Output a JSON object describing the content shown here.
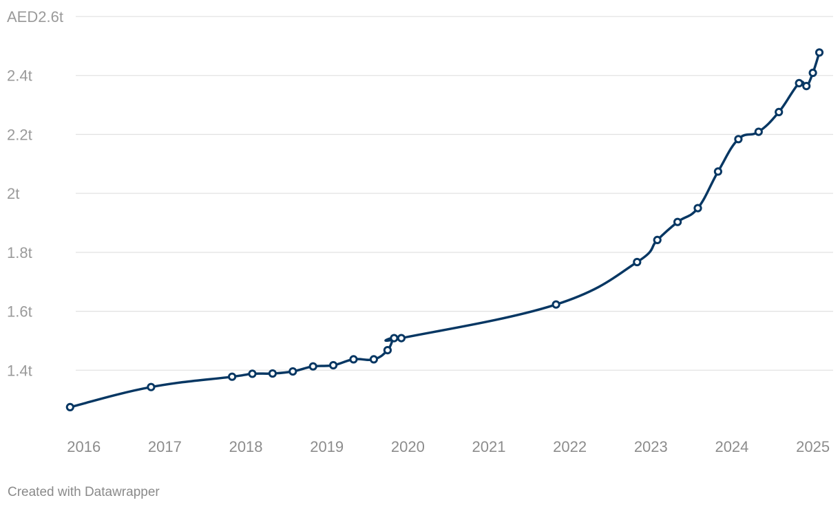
{
  "chart_data": {
    "type": "line",
    "title": "",
    "xlabel": "",
    "ylabel": "",
    "x_domain": [
      2015.9,
      2025.25
    ],
    "ylim": [
      1.2,
      2.6
    ],
    "y_ticks": [
      {
        "value": 2.6,
        "label": "AED2.6t"
      },
      {
        "value": 2.4,
        "label": "2.4t"
      },
      {
        "value": 2.2,
        "label": "2.2t"
      },
      {
        "value": 2.0,
        "label": "2t"
      },
      {
        "value": 1.8,
        "label": "1.8t"
      },
      {
        "value": 1.6,
        "label": "1.6t"
      },
      {
        "value": 1.4,
        "label": "1.4t"
      }
    ],
    "x_ticks": [
      {
        "value": 2016.0,
        "label": "2016"
      },
      {
        "value": 2017.0,
        "label": "2017"
      },
      {
        "value": 2018.0,
        "label": "2018"
      },
      {
        "value": 2019.0,
        "label": "2019"
      },
      {
        "value": 2020.0,
        "label": "2020"
      },
      {
        "value": 2021.0,
        "label": "2021"
      },
      {
        "value": 2022.0,
        "label": "2022"
      },
      {
        "value": 2023.0,
        "label": "2023"
      },
      {
        "value": 2024.0,
        "label": "2024"
      },
      {
        "value": 2025.0,
        "label": "2025"
      }
    ],
    "series": [
      {
        "name": "Value (AED trillion)",
        "color": "#073763",
        "points": [
          {
            "x": 2015.83,
            "y": 1.275
          },
          {
            "x": 2016.83,
            "y": 1.343
          },
          {
            "x": 2017.83,
            "y": 1.378
          },
          {
            "x": 2018.08,
            "y": 1.388
          },
          {
            "x": 2018.33,
            "y": 1.389
          },
          {
            "x": 2018.58,
            "y": 1.396
          },
          {
            "x": 2018.83,
            "y": 1.413
          },
          {
            "x": 2019.08,
            "y": 1.417
          },
          {
            "x": 2019.33,
            "y": 1.437
          },
          {
            "x": 2019.58,
            "y": 1.437
          },
          {
            "x": 2019.75,
            "y": 1.468
          },
          {
            "x": 2019.83,
            "y": 1.509
          },
          {
            "x": 2019.92,
            "y": 1.509
          },
          {
            "x": 2021.83,
            "y": 1.623
          },
          {
            "x": 2022.83,
            "y": 1.767
          },
          {
            "x": 2023.08,
            "y": 1.842
          },
          {
            "x": 2023.33,
            "y": 1.903
          },
          {
            "x": 2023.58,
            "y": 1.95
          },
          {
            "x": 2023.83,
            "y": 2.074
          },
          {
            "x": 2024.08,
            "y": 2.184
          },
          {
            "x": 2024.33,
            "y": 2.209
          },
          {
            "x": 2024.58,
            "y": 2.276
          },
          {
            "x": 2024.83,
            "y": 2.374
          },
          {
            "x": 2024.92,
            "y": 2.364
          },
          {
            "x": 2025.0,
            "y": 2.409
          },
          {
            "x": 2025.08,
            "y": 2.478
          }
        ]
      }
    ]
  },
  "footer": {
    "credit": "Created with Datawrapper"
  }
}
